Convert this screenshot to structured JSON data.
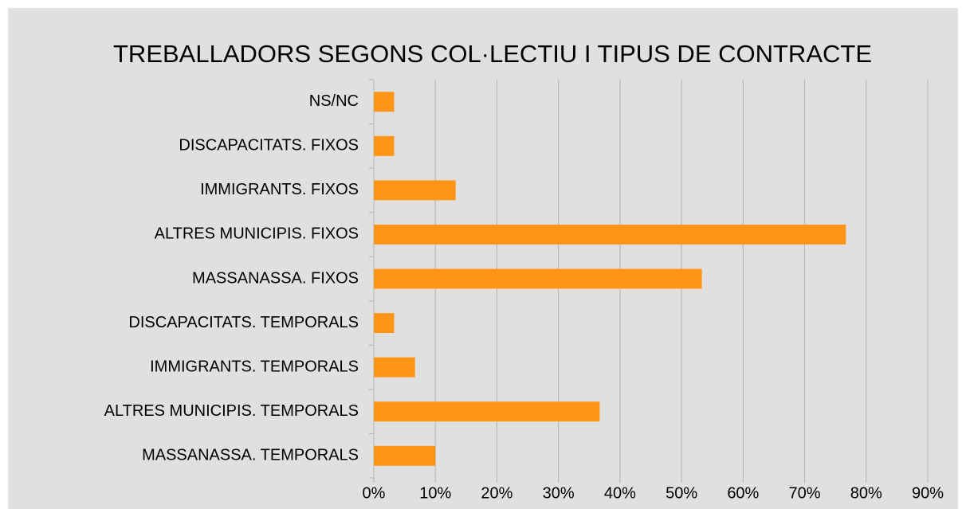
{
  "chart_data": {
    "type": "barh",
    "title": "TREBALLADORS SEGONS COL·LECTIU I TIPUS DE CONTRACTE",
    "categories": [
      "NS/NC",
      "DISCAPACITATS. FIXOS",
      "IMMIGRANTS. FIXOS",
      "ALTRES MUNICIPIS. FIXOS",
      "MASSANASSA. FIXOS",
      "DISCAPACITATS. TEMPORALS",
      "IMMIGRANTS. TEMPORALS",
      "ALTRES MUNICIPIS. TEMPORALS",
      "MASSANASSA. TEMPORALS"
    ],
    "values": [
      3.3,
      3.3,
      13.3,
      76.7,
      53.3,
      3.3,
      6.7,
      36.7,
      10
    ],
    "color": "#ff9517",
    "xlim": [
      0,
      90
    ],
    "xticks": [
      {
        "value": 0,
        "label": "0%"
      },
      {
        "value": 10,
        "label": "10%"
      },
      {
        "value": 20,
        "label": "20%"
      },
      {
        "value": 30,
        "label": "30%"
      },
      {
        "value": 40,
        "label": "40%"
      },
      {
        "value": 50,
        "label": "50%"
      },
      {
        "value": 60,
        "label": "60%"
      },
      {
        "value": 70,
        "label": "70%"
      },
      {
        "value": 80,
        "label": "80%"
      },
      {
        "value": 90,
        "label": "90%"
      }
    ],
    "grid": true
  }
}
